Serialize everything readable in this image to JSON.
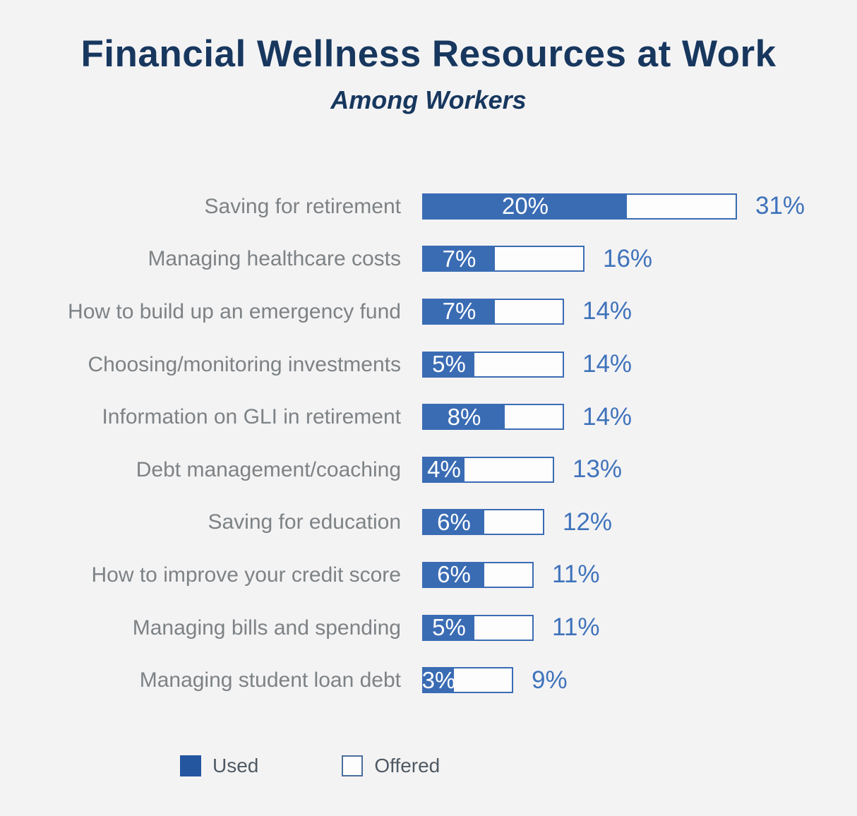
{
  "chart_data": {
    "type": "bar",
    "orientation": "horizontal",
    "title": "Financial Wellness Resources at Work",
    "subtitle": "Among Workers",
    "categories": [
      "Saving for retirement",
      "Managing healthcare costs",
      "How to build up an emergency fund",
      "Choosing/monitoring investments",
      "Information on GLI in retirement",
      "Debt management/coaching",
      "Saving for education",
      "How to improve your credit score",
      "Managing bills and spending",
      "Managing student loan debt"
    ],
    "series": [
      {
        "name": "Used",
        "values": [
          20,
          7,
          7,
          5,
          8,
          4,
          6,
          6,
          5,
          3
        ]
      },
      {
        "name": "Offered",
        "values": [
          31,
          16,
          14,
          14,
          14,
          13,
          12,
          11,
          11,
          9
        ]
      }
    ],
    "value_suffix": "%",
    "xlim": [
      0,
      31
    ],
    "grid": false,
    "legend_position": "bottom",
    "colors": {
      "background": "#f4f3f4",
      "title": "#17375e",
      "category_label": "#7d8285",
      "used_fill": "#3a6cb4",
      "offered_outline": "#3a6cb4",
      "used_value_text": "#ffffff",
      "offered_value_text": "#3f73bb",
      "legend_used_swatch": "#2456a0"
    }
  }
}
